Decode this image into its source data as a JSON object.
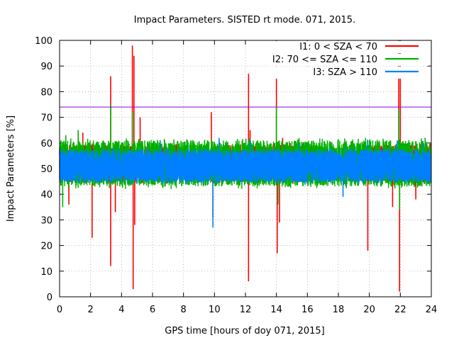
{
  "chart_data": {
    "type": "line",
    "title": "Impact Parameters. SISTED rt mode. 071, 2015.",
    "xlabel": "GPS time [hours of doy 071, 2015]",
    "ylabel": "Impact Parameters [%]",
    "xlim": [
      0,
      24
    ],
    "ylim": [
      0,
      100
    ],
    "xticks": [
      0,
      2,
      4,
      6,
      8,
      10,
      12,
      14,
      16,
      18,
      20,
      22,
      24
    ],
    "yticks": [
      0,
      10,
      20,
      30,
      40,
      50,
      60,
      70,
      80,
      90,
      100
    ],
    "grid": true,
    "legend_position": "top-right",
    "reference_line": {
      "y": 74,
      "color": "#9400d3"
    },
    "series": [
      {
        "name": "I1: 0 < SZA < 70",
        "color": "#ff0000",
        "baseline": 52,
        "noise_range": [
          44,
          60
        ],
        "segments": [
          [
            0,
            7.6
          ],
          [
            9.8,
            16.3
          ],
          [
            19.8,
            24
          ]
        ],
        "spikes": [
          [
            0.6,
            36
          ],
          [
            1.5,
            64
          ],
          [
            2.1,
            23
          ],
          [
            3.3,
            86
          ],
          [
            3.3,
            12
          ],
          [
            3.6,
            33
          ],
          [
            4.7,
            98
          ],
          [
            4.75,
            3
          ],
          [
            4.8,
            94
          ],
          [
            4.85,
            28
          ],
          [
            5.2,
            70
          ],
          [
            9.8,
            72
          ],
          [
            9.9,
            31
          ],
          [
            12.2,
            87
          ],
          [
            12.2,
            6
          ],
          [
            12.3,
            65
          ],
          [
            14.0,
            89
          ],
          [
            14.05,
            17
          ],
          [
            14.2,
            29
          ],
          [
            14.4,
            62
          ],
          [
            19.9,
            18
          ],
          [
            21.5,
            35
          ],
          [
            21.9,
            100
          ],
          [
            21.95,
            2
          ],
          [
            22.0,
            95
          ],
          [
            23.0,
            38
          ]
        ]
      },
      {
        "name": "I2: 70 <= SZA <= 110",
        "color": "#00b000",
        "baseline": 52,
        "noise_range": [
          42,
          62
        ],
        "segments": [
          [
            0,
            24
          ]
        ],
        "spikes": [
          [
            0.2,
            35
          ],
          [
            0.4,
            63
          ],
          [
            1.2,
            65
          ],
          [
            3.3,
            75
          ],
          [
            4.7,
            72
          ],
          [
            12.2,
            57
          ],
          [
            14.0,
            74
          ],
          [
            14.1,
            36
          ],
          [
            21.9,
            73
          ],
          [
            21.95,
            34
          ],
          [
            23.6,
            62
          ]
        ]
      },
      {
        "name": "I3: SZA > 110",
        "color": "#0080ff",
        "baseline": 51,
        "noise_range": [
          44,
          58
        ],
        "segments": [
          [
            0,
            24
          ]
        ],
        "spikes": [
          [
            6.5,
            61
          ],
          [
            9.9,
            27
          ],
          [
            10.3,
            62
          ],
          [
            12.3,
            61
          ],
          [
            15.5,
            60
          ],
          [
            18.3,
            39
          ],
          [
            19.9,
            61
          ],
          [
            21.8,
            61
          ],
          [
            23.5,
            60
          ]
        ]
      }
    ]
  }
}
